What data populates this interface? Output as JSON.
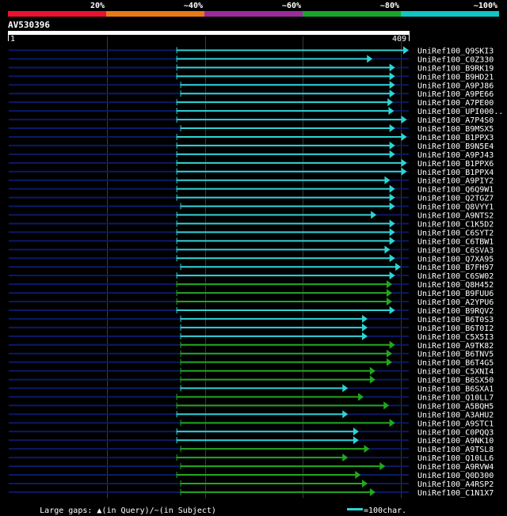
{
  "colorbar": {
    "segments": [
      {
        "label": "20%",
        "color": "#e8132f"
      },
      {
        "label": "~40%",
        "color": "#e87a18"
      },
      {
        "label": "~60%",
        "color": "#9a2c9a"
      },
      {
        "label": "~80%",
        "color": "#1aa52a"
      },
      {
        "label": "~100%",
        "color": "#12c4c4"
      }
    ]
  },
  "query": {
    "id": "AV530396",
    "start_label": "1",
    "end_label": "409",
    "length": 409
  },
  "colors": {
    "cyan": "#2fd4d4",
    "green": "#22a81e",
    "navy": "#0b1a66",
    "grid": "#3a3a3a"
  },
  "hits": [
    {
      "name": "UniRef100_Q9SKI3",
      "qs": 172,
      "qe": 409,
      "color": "cyan"
    },
    {
      "name": "UniRef100_C0Z330",
      "qs": 172,
      "qe": 372,
      "color": "cyan"
    },
    {
      "name": "UniRef100_B9RK19",
      "qs": 172,
      "qe": 395,
      "color": "cyan"
    },
    {
      "name": "UniRef100_B9HD21",
      "qs": 172,
      "qe": 395,
      "color": "cyan"
    },
    {
      "name": "UniRef100_A9PJ86",
      "qs": 176,
      "qe": 395,
      "color": "cyan"
    },
    {
      "name": "UniRef100_A9PE66",
      "qs": 176,
      "qe": 395,
      "color": "cyan"
    },
    {
      "name": "UniRef100_A7PE00",
      "qs": 172,
      "qe": 393,
      "color": "cyan"
    },
    {
      "name": "UniRef100_UPI000..",
      "qs": 172,
      "qe": 394,
      "color": "cyan"
    },
    {
      "name": "UniRef100_A7P4S0",
      "qs": 172,
      "qe": 407,
      "color": "cyan"
    },
    {
      "name": "UniRef100_B9MSX5",
      "qs": 176,
      "qe": 395,
      "color": "cyan"
    },
    {
      "name": "UniRef100_B1PPX3",
      "qs": 172,
      "qe": 407,
      "color": "cyan"
    },
    {
      "name": "UniRef100_B9N5E4",
      "qs": 172,
      "qe": 395,
      "color": "cyan"
    },
    {
      "name": "UniRef100_A9PJ43",
      "qs": 172,
      "qe": 395,
      "color": "cyan"
    },
    {
      "name": "UniRef100_B1PPX6",
      "qs": 172,
      "qe": 407,
      "color": "cyan"
    },
    {
      "name": "UniRef100_B1PPX4",
      "qs": 172,
      "qe": 407,
      "color": "cyan"
    },
    {
      "name": "UniRef100_A9PIY2",
      "qs": 172,
      "qe": 390,
      "color": "cyan"
    },
    {
      "name": "UniRef100_Q6Q9W1",
      "qs": 172,
      "qe": 395,
      "color": "cyan"
    },
    {
      "name": "UniRef100_Q2TGZ7",
      "qs": 172,
      "qe": 395,
      "color": "cyan"
    },
    {
      "name": "UniRef100_Q8VYY1",
      "qs": 176,
      "qe": 395,
      "color": "cyan"
    },
    {
      "name": "UniRef100_A9NTS2",
      "qs": 172,
      "qe": 376,
      "color": "cyan"
    },
    {
      "name": "UniRef100_C1K5D2",
      "qs": 172,
      "qe": 395,
      "color": "cyan"
    },
    {
      "name": "UniRef100_C6SYT2",
      "qs": 172,
      "qe": 395,
      "color": "cyan"
    },
    {
      "name": "UniRef100_C6TBW1",
      "qs": 172,
      "qe": 395,
      "color": "cyan"
    },
    {
      "name": "UniRef100_C6SVA3",
      "qs": 172,
      "qe": 390,
      "color": "cyan"
    },
    {
      "name": "UniRef100_Q7XA95",
      "qs": 172,
      "qe": 395,
      "color": "cyan"
    },
    {
      "name": "UniRef100_B7FH97",
      "qs": 176,
      "qe": 401,
      "color": "cyan"
    },
    {
      "name": "UniRef100_C6SW02",
      "qs": 172,
      "qe": 395,
      "color": "cyan"
    },
    {
      "name": "UniRef100_Q8H452",
      "qs": 172,
      "qe": 392,
      "color": "green"
    },
    {
      "name": "UniRef100_B9FUU6",
      "qs": 172,
      "qe": 392,
      "color": "green"
    },
    {
      "name": "UniRef100_A2YPU6",
      "qs": 172,
      "qe": 392,
      "color": "green"
    },
    {
      "name": "UniRef100_B9RQV2",
      "qs": 172,
      "qe": 395,
      "color": "cyan"
    },
    {
      "name": "UniRef100_B6T0S3",
      "qs": 176,
      "qe": 367,
      "color": "cyan"
    },
    {
      "name": "UniRef100_B6T0I2",
      "qs": 176,
      "qe": 367,
      "color": "cyan"
    },
    {
      "name": "UniRef100_C5X5I3",
      "qs": 176,
      "qe": 367,
      "color": "cyan"
    },
    {
      "name": "UniRef100_A9TK82",
      "qs": 176,
      "qe": 395,
      "color": "green"
    },
    {
      "name": "UniRef100_B6TNV5",
      "qs": 176,
      "qe": 392,
      "color": "green"
    },
    {
      "name": "UniRef100_B6T4G5",
      "qs": 176,
      "qe": 392,
      "color": "green"
    },
    {
      "name": "UniRef100_C5XNI4",
      "qs": 176,
      "qe": 375,
      "color": "green"
    },
    {
      "name": "UniRef100_B6SX50",
      "qs": 176,
      "qe": 375,
      "color": "green"
    },
    {
      "name": "UniRef100_B6SXA1",
      "qs": 176,
      "qe": 347,
      "color": "cyan"
    },
    {
      "name": "UniRef100_Q10LL7",
      "qs": 172,
      "qe": 363,
      "color": "green"
    },
    {
      "name": "UniRef100_A5BQH5",
      "qs": 172,
      "qe": 389,
      "color": "green"
    },
    {
      "name": "UniRef100_A3AHU2",
      "qs": 172,
      "qe": 347,
      "color": "cyan"
    },
    {
      "name": "UniRef100_A9STC1",
      "qs": 176,
      "qe": 395,
      "color": "green"
    },
    {
      "name": "UniRef100_C0PQQ3",
      "qs": 172,
      "qe": 358,
      "color": "cyan"
    },
    {
      "name": "UniRef100_A9NK10",
      "qs": 172,
      "qe": 358,
      "color": "cyan"
    },
    {
      "name": "UniRef100_A9TSL8",
      "qs": 176,
      "qe": 369,
      "color": "green"
    },
    {
      "name": "UniRef100_Q10LL6",
      "qs": 172,
      "qe": 347,
      "color": "green"
    },
    {
      "name": "UniRef100_A9RVW4",
      "qs": 176,
      "qe": 385,
      "color": "green"
    },
    {
      "name": "UniRef100_Q0D300",
      "qs": 172,
      "qe": 360,
      "color": "green"
    },
    {
      "name": "UniRef100_A4RSP2",
      "qs": 176,
      "qe": 367,
      "color": "green"
    },
    {
      "name": "UniRef100_C1N1X7",
      "qs": 176,
      "qe": 375,
      "color": "green"
    }
  ],
  "footer": {
    "gap_label": "Large gaps: ",
    "gap_query_symbol": "▲",
    "gap_query_text": "(in Query)/",
    "gap_subject_symbol": "~",
    "gap_subject_text": "(in Subject)",
    "scale_label": "=100char."
  }
}
